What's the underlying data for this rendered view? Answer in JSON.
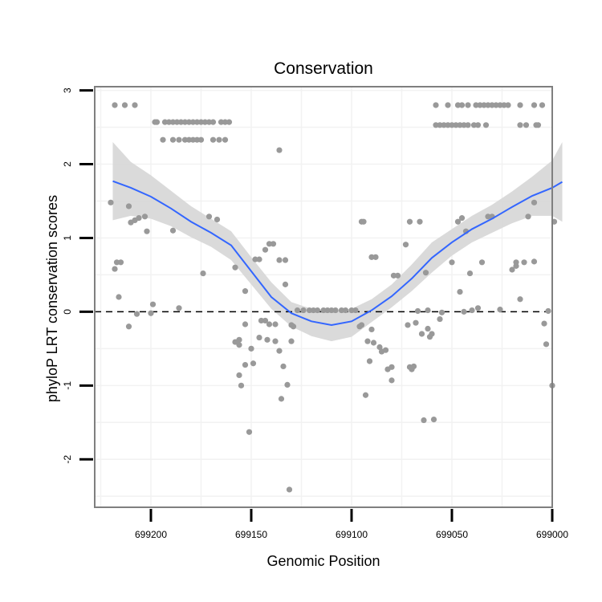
{
  "chart_data": {
    "type": "scatter",
    "title": "Conservation",
    "xlabel": "Genomic Position",
    "ylabel": "phyloP LRT conservation scores",
    "x_reversed": true,
    "xlim": [
      699000,
      699228
    ],
    "ylim": [
      -2.65,
      3.05
    ],
    "x_ticks": [
      699200,
      699150,
      699100,
      699050,
      699000
    ],
    "y_ticks": [
      -2,
      -1,
      0,
      1,
      2,
      3
    ],
    "grid": true,
    "reference_line": {
      "y": 0,
      "style": "dashed"
    },
    "colors": {
      "points": "#999999",
      "smooth_line": "#3366ff",
      "confidence_band": "#d6d6d6",
      "panel_border": "#7f7f7f",
      "grid": "#f2f2f2"
    },
    "points": [
      [
        699218,
        2.8
      ],
      [
        699213,
        2.8
      ],
      [
        699208,
        2.8
      ],
      [
        699198,
        2.57
      ],
      [
        699197,
        2.57
      ],
      [
        699193,
        2.57
      ],
      [
        699191,
        2.57
      ],
      [
        699189,
        2.57
      ],
      [
        699187,
        2.57
      ],
      [
        699185,
        2.57
      ],
      [
        699183,
        2.57
      ],
      [
        699181,
        2.57
      ],
      [
        699179,
        2.57
      ],
      [
        699177,
        2.57
      ],
      [
        699175,
        2.57
      ],
      [
        699173,
        2.57
      ],
      [
        699171,
        2.57
      ],
      [
        699169,
        2.57
      ],
      [
        699165,
        2.57
      ],
      [
        699163,
        2.57
      ],
      [
        699161,
        2.57
      ],
      [
        699194,
        2.33
      ],
      [
        699189,
        2.33
      ],
      [
        699186,
        2.33
      ],
      [
        699183,
        2.33
      ],
      [
        699181,
        2.33
      ],
      [
        699179,
        2.33
      ],
      [
        699177,
        2.33
      ],
      [
        699175,
        2.33
      ],
      [
        699169,
        2.33
      ],
      [
        699166,
        2.33
      ],
      [
        699163,
        2.33
      ],
      [
        699136,
        2.19
      ],
      [
        699220,
        1.48
      ],
      [
        699211,
        1.43
      ],
      [
        699206,
        1.27
      ],
      [
        699208,
        1.24
      ],
      [
        699210,
        1.21
      ],
      [
        699203,
        1.29
      ],
      [
        699171,
        1.29
      ],
      [
        699167,
        1.25
      ],
      [
        699202,
        1.09
      ],
      [
        699189,
        1.1
      ],
      [
        699217,
        0.67
      ],
      [
        699215,
        0.67
      ],
      [
        699218,
        0.58
      ],
      [
        699158,
        0.6
      ],
      [
        699148,
        0.71
      ],
      [
        699146,
        0.71
      ],
      [
        699143,
        0.84
      ],
      [
        699141,
        0.92
      ],
      [
        699139,
        0.92
      ],
      [
        699136,
        0.7
      ],
      [
        699133,
        0.7
      ],
      [
        699174,
        0.52
      ],
      [
        699133,
        0.37
      ],
      [
        699216,
        0.2
      ],
      [
        699199,
        0.1
      ],
      [
        699186,
        0.05
      ],
      [
        699153,
        0.28
      ],
      [
        699211,
        -0.2
      ],
      [
        699207,
        -0.03
      ],
      [
        699200,
        -0.02
      ],
      [
        699153,
        -0.17
      ],
      [
        699145,
        -0.12
      ],
      [
        699143,
        -0.12
      ],
      [
        699141,
        -0.17
      ],
      [
        699138,
        -0.17
      ],
      [
        699130,
        -0.18
      ],
      [
        699129,
        -0.2
      ],
      [
        699156,
        -0.38
      ],
      [
        699158,
        -0.41
      ],
      [
        699156,
        -0.45
      ],
      [
        699146,
        -0.35
      ],
      [
        699142,
        -0.38
      ],
      [
        699138,
        -0.4
      ],
      [
        699130,
        -0.4
      ],
      [
        699156,
        -0.86
      ],
      [
        699155,
        -1.0
      ],
      [
        699153,
        -0.72
      ],
      [
        699150,
        -0.5
      ],
      [
        699149,
        -0.7
      ],
      [
        699136,
        -0.53
      ],
      [
        699135,
        -1.18
      ],
      [
        699134,
        -0.74
      ],
      [
        699132,
        -0.99
      ],
      [
        699151,
        -1.63
      ],
      [
        699131,
        -2.41
      ],
      [
        699127,
        0.02
      ],
      [
        699124,
        0.02
      ],
      [
        699121,
        0.02
      ],
      [
        699119,
        0.02
      ],
      [
        699117,
        0.02
      ],
      [
        699114,
        0.02
      ],
      [
        699112,
        0.02
      ],
      [
        699110,
        0.02
      ],
      [
        699108,
        0.02
      ],
      [
        699105,
        0.02
      ],
      [
        699103,
        0.02
      ],
      [
        699100,
        0.02
      ],
      [
        699098,
        0.02
      ],
      [
        699095,
        1.22
      ],
      [
        699094,
        1.22
      ],
      [
        699090,
        0.74
      ],
      [
        699088,
        0.74
      ],
      [
        699079,
        0.49
      ],
      [
        699077,
        0.49
      ],
      [
        699073,
        0.91
      ],
      [
        699071,
        1.22
      ],
      [
        699066,
        1.22
      ],
      [
        699063,
        0.53
      ],
      [
        699062,
        0.02
      ],
      [
        699096,
        -0.2
      ],
      [
        699095,
        -0.18
      ],
      [
        699092,
        -0.4
      ],
      [
        699089,
        -0.42
      ],
      [
        699090,
        -0.24
      ],
      [
        699086,
        -0.48
      ],
      [
        699085,
        -0.54
      ],
      [
        699083,
        -0.52
      ],
      [
        699082,
        -0.78
      ],
      [
        699080,
        -0.93
      ],
      [
        699080,
        -0.75
      ],
      [
        699072,
        -0.18
      ],
      [
        699071,
        -0.75
      ],
      [
        699070,
        -0.78
      ],
      [
        699069,
        -0.74
      ],
      [
        699068,
        -0.15
      ],
      [
        699067,
        0.01
      ],
      [
        699065,
        -0.3
      ],
      [
        699064,
        -1.47
      ],
      [
        699062,
        -0.23
      ],
      [
        699061,
        -0.34
      ],
      [
        699060,
        -0.3
      ],
      [
        699059,
        -1.46
      ],
      [
        699056,
        -0.1
      ],
      [
        699055,
        -0.01
      ],
      [
        699091,
        -0.67
      ],
      [
        699093,
        -1.13
      ],
      [
        699058,
        2.8
      ],
      [
        699052,
        2.8
      ],
      [
        699047,
        2.8
      ],
      [
        699045,
        2.8
      ],
      [
        699042,
        2.8
      ],
      [
        699038,
        2.8
      ],
      [
        699036,
        2.8
      ],
      [
        699034,
        2.8
      ],
      [
        699032,
        2.8
      ],
      [
        699030,
        2.8
      ],
      [
        699028,
        2.8
      ],
      [
        699026,
        2.8
      ],
      [
        699024,
        2.8
      ],
      [
        699022,
        2.8
      ],
      [
        699016,
        2.8
      ],
      [
        699009,
        2.8
      ],
      [
        699005,
        2.8
      ],
      [
        699058,
        2.53
      ],
      [
        699056,
        2.53
      ],
      [
        699054,
        2.53
      ],
      [
        699052,
        2.53
      ],
      [
        699050,
        2.53
      ],
      [
        699048,
        2.53
      ],
      [
        699046,
        2.53
      ],
      [
        699044,
        2.53
      ],
      [
        699042,
        2.53
      ],
      [
        699039,
        2.53
      ],
      [
        699037,
        2.53
      ],
      [
        699033,
        2.53
      ],
      [
        699016,
        2.53
      ],
      [
        699013,
        2.53
      ],
      [
        699008,
        2.53
      ],
      [
        699007,
        2.53
      ],
      [
        699050,
        0.67
      ],
      [
        699046,
        0.27
      ],
      [
        699047,
        1.22
      ],
      [
        699045,
        1.27
      ],
      [
        699043,
        1.09
      ],
      [
        699041,
        0.52
      ],
      [
        699035,
        0.67
      ],
      [
        699032,
        1.29
      ],
      [
        699030,
        1.29
      ],
      [
        699026,
        0.03
      ],
      [
        699020,
        0.57
      ],
      [
        699018,
        0.62
      ],
      [
        699018,
        0.67
      ],
      [
        699016,
        0.17
      ],
      [
        699014,
        0.67
      ],
      [
        699012,
        1.29
      ],
      [
        699009,
        1.48
      ],
      [
        699009,
        0.68
      ],
      [
        699004,
        -0.16
      ],
      [
        699002,
        0.01
      ],
      [
        699003,
        -0.44
      ],
      [
        699000,
        -1.0
      ],
      [
        698999,
        1.22
      ],
      [
        699044,
        0.0
      ],
      [
        699037,
        0.05
      ],
      [
        699040,
        0.02
      ]
    ],
    "smooth": [
      [
        699219,
        1.77
      ],
      [
        699210,
        1.68
      ],
      [
        699200,
        1.56
      ],
      [
        699190,
        1.4
      ],
      [
        699180,
        1.22
      ],
      [
        699170,
        1.07
      ],
      [
        699160,
        0.9
      ],
      [
        699150,
        0.55
      ],
      [
        699140,
        0.2
      ],
      [
        699130,
        -0.02
      ],
      [
        699120,
        -0.13
      ],
      [
        699110,
        -0.18
      ],
      [
        699100,
        -0.13
      ],
      [
        699090,
        0.02
      ],
      [
        699080,
        0.21
      ],
      [
        699070,
        0.45
      ],
      [
        699060,
        0.73
      ],
      [
        699050,
        0.94
      ],
      [
        699040,
        1.12
      ],
      [
        699030,
        1.26
      ],
      [
        699020,
        1.42
      ],
      [
        699010,
        1.57
      ],
      [
        699000,
        1.68
      ],
      [
        698995,
        1.76
      ]
    ],
    "band_upper": [
      [
        699219,
        2.3
      ],
      [
        699210,
        2.03
      ],
      [
        699200,
        1.85
      ],
      [
        699190,
        1.64
      ],
      [
        699180,
        1.43
      ],
      [
        699170,
        1.26
      ],
      [
        699160,
        1.09
      ],
      [
        699150,
        0.74
      ],
      [
        699140,
        0.4
      ],
      [
        699130,
        0.13
      ],
      [
        699120,
        0.04
      ],
      [
        699110,
        0.01
      ],
      [
        699100,
        0.04
      ],
      [
        699090,
        0.17
      ],
      [
        699080,
        0.37
      ],
      [
        699070,
        0.64
      ],
      [
        699060,
        0.94
      ],
      [
        699050,
        1.12
      ],
      [
        699040,
        1.3
      ],
      [
        699030,
        1.45
      ],
      [
        699020,
        1.63
      ],
      [
        699010,
        1.83
      ],
      [
        699000,
        2.05
      ],
      [
        698995,
        2.3
      ]
    ],
    "band_lower": [
      [
        699219,
        1.24
      ],
      [
        699210,
        1.3
      ],
      [
        699200,
        1.26
      ],
      [
        699190,
        1.16
      ],
      [
        699180,
        1.01
      ],
      [
        699170,
        0.88
      ],
      [
        699160,
        0.7
      ],
      [
        699150,
        0.37
      ],
      [
        699140,
        0.04
      ],
      [
        699130,
        -0.2
      ],
      [
        699120,
        -0.33
      ],
      [
        699110,
        -0.4
      ],
      [
        699100,
        -0.34
      ],
      [
        699090,
        -0.14
      ],
      [
        699080,
        0.06
      ],
      [
        699070,
        0.28
      ],
      [
        699060,
        0.53
      ],
      [
        699050,
        0.76
      ],
      [
        699040,
        0.94
      ],
      [
        699030,
        1.07
      ],
      [
        699020,
        1.2
      ],
      [
        699010,
        1.3
      ],
      [
        699000,
        1.3
      ],
      [
        698995,
        1.22
      ]
    ]
  }
}
